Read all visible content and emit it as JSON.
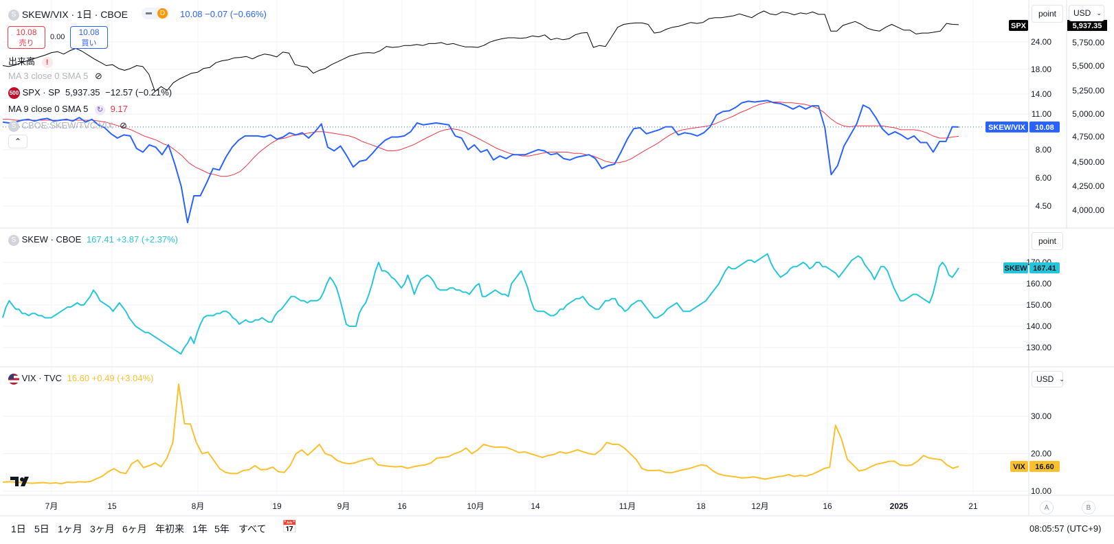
{
  "header": {
    "symbol": "SKEW/VIX",
    "interval": "1日",
    "exchange": "CBOE",
    "last": "10.08",
    "change": "−0.07",
    "change_pct": "(−0.66%)",
    "sell_price": "10.08",
    "sell_label": "売り",
    "spread": "0.00",
    "buy_price": "10.08",
    "buy_label": "買い",
    "d_badge": "D"
  },
  "legend": {
    "volume": "出来高",
    "ma1": "MA 3 close 0 SMA 5",
    "spx_line": "SPX · SP",
    "spx_value": "5,937.35",
    "spx_change": "−12.57",
    "spx_pct": "(−0.21%)",
    "spx_icon": "500",
    "ma2": "MA 9 close 0 SMA 5",
    "ma2_value": "9.17",
    "ratio": "CBOE:SKEW/TVC:VIX",
    "collapse_icon": "chevron-up-icon",
    "skew_line": "SKEW · CBOE",
    "skew_value": "167.41",
    "skew_change": "+3.87",
    "skew_pct": "(+2.37%)",
    "vix_line": "VIX · TVC",
    "vix_value": "16.60",
    "vix_change": "+0.49",
    "vix_pct": "(+3.04%)"
  },
  "scale_buttons": {
    "point": "point",
    "usd": "USD",
    "point2": "point",
    "usd2": "USD",
    "a": "A",
    "b": "B"
  },
  "price_tags": {
    "spx": "SPX",
    "spx_value": "5,937.35",
    "ratio": "SKEW/VIX",
    "ratio_value": "10.08",
    "skew": "SKEW",
    "skew_value": "167.41",
    "vix": "VIX",
    "vix_value": "16.60"
  },
  "timeframes": [
    "1日",
    "5日",
    "1ヶ月",
    "3ヶ月",
    "6ヶ月",
    "年初来",
    "1年",
    "5年",
    "すべて"
  ],
  "clock": "08:05:57 (UTC+9)",
  "colors": {
    "spx": "#000000",
    "ratio": "#2962ff",
    "ma": "#f23645",
    "skew": "#26c6da",
    "vix": "#fbc02d",
    "grid": "#f0f3fa"
  },
  "chart_data": [
    {
      "type": "line",
      "x_tick_labels": [
        "7月",
        "15",
        "8月",
        "19",
        "9月",
        "16",
        "10月",
        "14",
        "11月",
        "18",
        "12月",
        "16",
        "2025",
        "21"
      ],
      "left_axis_ticks": [
        24.0,
        18.0,
        14.0,
        11.0,
        8.0,
        6.0,
        4.5
      ],
      "right_axis_ticks": [
        5750,
        5500,
        5250,
        5000,
        4750,
        4500,
        4250,
        4000
      ],
      "series": [
        {
          "name": "SPX",
          "axis": "right",
          "values": [
            5510,
            5500,
            5515,
            5540,
            5560,
            5580,
            5600,
            5620,
            5645,
            5655,
            5630,
            5665,
            5690,
            5660,
            5620,
            5580,
            5545,
            5510,
            5520,
            5480,
            5460,
            5480,
            5510,
            5500,
            5420,
            5240,
            5290,
            5250,
            5330,
            5370,
            5400,
            5430,
            5440,
            5480,
            5490,
            5540,
            5560,
            5570,
            5590,
            5595,
            5605,
            5580,
            5610,
            5630,
            5620,
            5600,
            5650,
            5640,
            5520,
            5505,
            5495,
            5430,
            5460,
            5480,
            5520,
            5550,
            5580,
            5610,
            5625,
            5640,
            5645,
            5640,
            5665,
            5710,
            5700,
            5705,
            5720,
            5720,
            5730,
            5720,
            5740,
            5740,
            5750,
            5730,
            5740,
            5720,
            5705,
            5705,
            5700,
            5720,
            5755,
            5775,
            5790,
            5800,
            5800,
            5795,
            5800,
            5820,
            5810,
            5830,
            5780,
            5795,
            5780,
            5790,
            5830,
            5850,
            5855,
            5700,
            5720,
            5710,
            5810,
            5910,
            5940,
            5950,
            5955,
            5955,
            5940,
            5850,
            5860,
            5890,
            5910,
            5920,
            5940,
            5960,
            5950,
            5960,
            6000,
            6010,
            6010,
            6020,
            6030,
            6050,
            6030,
            6010,
            6050,
            6080,
            6050,
            6040,
            6070,
            6060,
            6040,
            6060,
            6050,
            6070,
            6045,
            6045,
            5870,
            5870,
            5930,
            5950,
            5970,
            5940,
            5900,
            5880,
            5870,
            5910,
            5940,
            5910,
            5880,
            5880,
            5840,
            5850,
            5850,
            5860,
            5870,
            5950,
            5940,
            5937
          ]
        },
        {
          "name": "SKEW/VIX",
          "axis": "left",
          "values": [
            10.6,
            10.5,
            10.6,
            10.8,
            10.9,
            10.7,
            10.9,
            11.0,
            10.7,
            10.8,
            10.9,
            10.7,
            11.1,
            10.6,
            10.9,
            10.3,
            10.0,
            9.4,
            9.0,
            9.3,
            9.2,
            8.1,
            7.8,
            8.4,
            8.2,
            7.6,
            8.4,
            6.9,
            5.5,
            3.8,
            5.0,
            5.0,
            5.7,
            6.6,
            6.5,
            7.4,
            8.2,
            8.8,
            9.2,
            9.2,
            9.2,
            9.1,
            9.3,
            8.9,
            9.1,
            9.5,
            9.3,
            9.5,
            9.0,
            9.6,
            10.4,
            8.2,
            7.9,
            8.3,
            7.5,
            6.7,
            7.1,
            7.2,
            7.7,
            8.3,
            8.8,
            9.1,
            9.1,
            9.2,
            9.6,
            10.5,
            10.3,
            10.4,
            10.5,
            10.4,
            10.3,
            9.2,
            9.0,
            8.0,
            8.4,
            7.8,
            8.0,
            7.2,
            7.5,
            7.3,
            7.6,
            7.6,
            7.6,
            7.8,
            8.0,
            7.9,
            7.6,
            7.7,
            7.3,
            7.2,
            7.4,
            7.5,
            7.6,
            7.3,
            6.6,
            6.8,
            6.9,
            7.8,
            8.9,
            9.9,
            10.0,
            9.4,
            9.6,
            9.8,
            10.1,
            10.1,
            9.3,
            9.5,
            9.4,
            9.2,
            9.5,
            10.1,
            11.4,
            11.8,
            11.9,
            12.3,
            12.9,
            13.1,
            13.0,
            13.1,
            13.2,
            12.9,
            12.8,
            12.5,
            12.1,
            12.5,
            12.1,
            12.5,
            12.5,
            10.0,
            6.2,
            6.8,
            8.3,
            9.3,
            10.4,
            12.6,
            12.2,
            11.1,
            9.9,
            9.3,
            9.6,
            9.3,
            8.9,
            9.2,
            8.6,
            8.6,
            7.8,
            8.7,
            8.7,
            10.1,
            10.08
          ]
        },
        {
          "name": "MA 9 close 0 SMA 5",
          "axis": "left",
          "values": [
            10.9,
            10.9,
            10.8,
            10.8,
            10.8,
            10.8,
            10.8,
            10.8,
            10.8,
            10.8,
            10.8,
            10.8,
            10.8,
            10.8,
            10.8,
            10.7,
            10.6,
            10.4,
            10.2,
            10.0,
            9.8,
            9.5,
            9.2,
            9.0,
            8.8,
            8.5,
            8.3,
            7.9,
            7.5,
            7.0,
            6.7,
            6.5,
            6.3,
            6.2,
            6.1,
            6.1,
            6.2,
            6.4,
            6.8,
            7.3,
            7.8,
            8.2,
            8.6,
            8.9,
            9.0,
            9.2,
            9.3,
            9.4,
            9.5,
            9.6,
            9.6,
            9.5,
            9.4,
            9.3,
            9.2,
            9.0,
            8.7,
            8.5,
            8.3,
            8.1,
            7.9,
            7.9,
            8.0,
            8.2,
            8.4,
            8.7,
            9.0,
            9.3,
            9.6,
            9.8,
            9.9,
            9.8,
            9.6,
            9.3,
            9.0,
            8.7,
            8.4,
            8.1,
            7.9,
            7.7,
            7.6,
            7.5,
            7.5,
            7.6,
            7.7,
            7.8,
            7.8,
            7.8,
            7.8,
            7.7,
            7.7,
            7.6,
            7.5,
            7.3,
            7.1,
            7.0,
            7.0,
            7.1,
            7.3,
            7.6,
            7.9,
            8.2,
            8.5,
            8.9,
            9.3,
            9.6,
            9.8,
            9.9,
            10.0,
            10.1,
            10.2,
            10.4,
            10.7,
            11.0,
            11.3,
            11.7,
            12.0,
            12.4,
            12.7,
            12.9,
            13.0,
            13.0,
            12.9,
            12.9,
            12.8,
            12.7,
            12.5,
            12.2,
            11.7,
            11.0,
            10.5,
            10.2,
            10.1,
            10.2,
            10.2,
            10.2,
            10.2,
            10.2,
            10.1,
            10.0,
            9.8,
            9.8,
            9.8,
            9.7,
            9.5,
            9.2,
            9.0,
            9.0,
            9.1,
            9.17
          ]
        }
      ]
    },
    {
      "type": "line",
      "title": "SKEW · CBOE",
      "axis_ticks": [
        170.0,
        160.0,
        150.0,
        140.0,
        130.0
      ],
      "series": [
        {
          "name": "SKEW",
          "values": [
            144,
            149,
            152,
            150,
            148,
            148,
            146,
            146,
            145,
            146,
            146,
            145,
            145,
            144,
            144,
            144,
            145,
            146,
            147,
            148,
            149,
            149,
            150,
            151,
            150,
            150,
            152,
            154,
            157,
            155,
            152,
            151,
            150,
            149,
            147,
            149,
            151,
            149,
            147,
            144,
            142,
            140,
            139,
            138,
            137,
            137,
            136,
            135,
            134,
            133,
            132,
            131,
            130,
            129,
            128,
            127,
            130,
            132,
            135,
            132,
            137,
            141,
            144,
            145,
            145,
            145,
            146,
            146,
            147,
            147,
            146,
            144,
            143,
            141,
            142,
            143,
            142,
            142,
            143,
            143,
            144,
            143,
            142,
            142,
            145,
            147,
            148,
            150,
            152,
            154,
            154,
            153,
            152,
            152,
            151,
            152,
            152,
            152,
            153,
            156,
            160,
            163,
            161,
            158,
            153,
            147,
            141,
            140,
            140,
            140,
            146,
            149,
            151,
            155,
            160,
            166,
            170,
            166,
            166,
            165,
            163,
            162,
            160,
            158,
            160,
            164,
            160,
            155,
            159,
            162,
            163,
            164,
            163,
            161,
            158,
            157,
            157,
            157,
            158,
            158,
            157,
            157,
            156,
            156,
            155,
            157,
            159,
            160,
            154,
            154,
            155,
            156,
            157,
            156,
            155,
            155,
            154,
            160,
            162,
            164,
            166,
            162,
            158,
            152,
            148,
            147,
            147,
            147,
            146,
            145,
            145,
            146,
            148,
            148,
            150,
            151,
            152,
            153,
            153,
            154,
            152,
            150,
            149,
            148,
            148,
            150,
            152,
            152,
            153,
            153,
            150,
            149,
            147,
            148,
            150,
            151,
            152,
            152,
            150,
            148,
            146,
            144,
            144,
            145,
            146,
            148,
            149,
            150,
            151,
            149,
            147,
            147,
            147,
            148,
            149,
            150,
            151,
            152,
            154,
            156,
            158,
            160,
            163,
            166,
            168,
            167,
            167,
            168,
            169,
            170,
            171,
            171,
            170,
            171,
            172,
            173,
            174,
            170,
            167,
            165,
            163,
            164,
            165,
            167,
            168,
            168,
            169,
            170,
            169,
            167,
            168,
            170,
            170,
            168,
            168,
            167,
            166,
            165,
            163,
            165,
            167,
            169,
            171,
            172,
            173,
            172,
            169,
            167,
            165,
            162,
            165,
            168,
            168,
            166,
            162,
            158,
            155,
            152,
            152,
            153,
            154,
            155,
            155,
            154,
            153,
            152,
            151,
            155,
            161,
            168,
            170,
            168,
            164,
            163,
            165,
            167.41
          ]
        }
      ]
    },
    {
      "type": "line",
      "title": "VIX · TVC",
      "axis_ticks": [
        30.0,
        20.0,
        10.0
      ],
      "series": [
        {
          "name": "VIX",
          "values": [
            12.4,
            12.5,
            12.4,
            12.3,
            12.2,
            12.1,
            12.2,
            12.3,
            12.1,
            12.2,
            12.0,
            12.4,
            12.3,
            12.5,
            12.4,
            12.6,
            13.3,
            14.0,
            15.2,
            16.0,
            15.0,
            14.7,
            17.3,
            18.3,
            16.3,
            16.8,
            17.5,
            16.5,
            18.8,
            23.0,
            38.6,
            28.0,
            27.9,
            23.0,
            20.0,
            20.4,
            18.2,
            16.0,
            15.0,
            14.7,
            14.7,
            15.5,
            15.7,
            16.8,
            15.7,
            15.8,
            16.4,
            15.2,
            15.0,
            16.8,
            20.0,
            21.0,
            19.6,
            21.0,
            22.5,
            20.0,
            19.5,
            18.2,
            17.6,
            17.3,
            17.5,
            18.1,
            18.5,
            18.8,
            17.0,
            16.8,
            16.6,
            16.5,
            16.6,
            16.1,
            16.5,
            16.8,
            17.0,
            17.5,
            18.8,
            19.0,
            19.2,
            20.0,
            20.5,
            21.5,
            20.0,
            21.0,
            22.5,
            22.0,
            21.7,
            21.8,
            21.6,
            21.0,
            20.3,
            20.5,
            20.0,
            19.5,
            19.0,
            19.5,
            19.8,
            20.5,
            20.1,
            20.5,
            21.0,
            20.5,
            20.0,
            19.8,
            21.0,
            23.0,
            22.5,
            22.5,
            21.5,
            20.0,
            18.5,
            16.0,
            15.5,
            15.5,
            15.6,
            15.0,
            14.9,
            15.3,
            15.7,
            16.0,
            16.5,
            17.0,
            16.8,
            15.5,
            14.6,
            14.2,
            14.0,
            13.8,
            13.5,
            13.6,
            13.8,
            13.5,
            13.2,
            13.5,
            13.8,
            14.0,
            14.4,
            13.9,
            14.2,
            14.0,
            14.5,
            15.2,
            16.0,
            16.4,
            27.6,
            24.0,
            18.5,
            17.0,
            15.4,
            15.7,
            16.5,
            17.2,
            17.5,
            17.9,
            18.0,
            17.0,
            16.8,
            17.0,
            18.0,
            19.5,
            18.8,
            18.6,
            18.4,
            17.0,
            16.1,
            16.6
          ]
        }
      ]
    }
  ]
}
